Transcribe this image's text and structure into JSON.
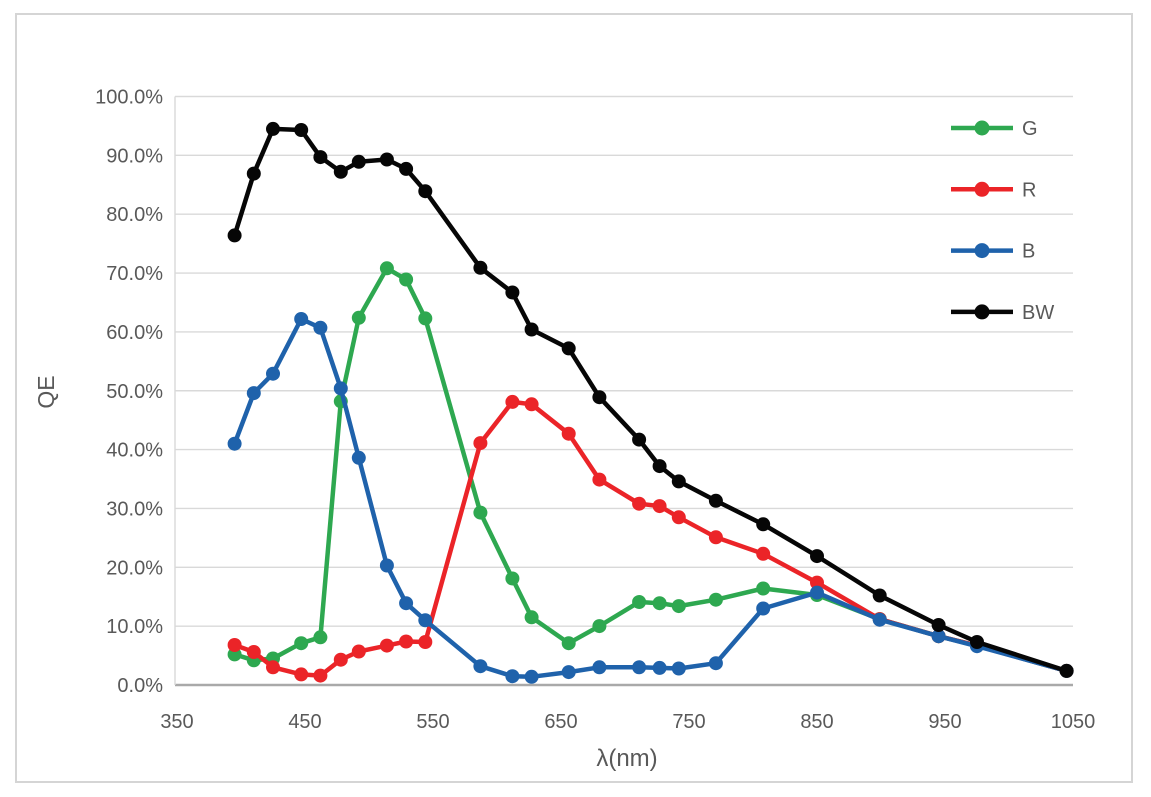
{
  "chart_data": {
    "type": "line",
    "title": "",
    "xlabel": "λ(nm)",
    "ylabel": "QE",
    "xlim": [
      350,
      1050
    ],
    "ylim_percent": [
      0,
      100
    ],
    "grid": "horizontal",
    "legend_position": "top-right-inside",
    "x_ticks": [
      {
        "v": 350,
        "label": "350"
      },
      {
        "v": 450,
        "label": "450"
      },
      {
        "v": 550,
        "label": "550"
      },
      {
        "v": 650,
        "label": "650"
      },
      {
        "v": 750,
        "label": "750"
      },
      {
        "v": 850,
        "label": "850"
      },
      {
        "v": 950,
        "label": "950"
      },
      {
        "v": 1050,
        "label": "1050"
      }
    ],
    "y_ticks": [
      {
        "v": 0,
        "label": "0.0%"
      },
      {
        "v": 10,
        "label": "10.0%"
      },
      {
        "v": 20,
        "label": "20.0%"
      },
      {
        "v": 30,
        "label": "30.0%"
      },
      {
        "v": 40,
        "label": "40.0%"
      },
      {
        "v": 50,
        "label": "50.0%"
      },
      {
        "v": 60,
        "label": "60.0%"
      },
      {
        "v": 70,
        "label": "70.0%"
      },
      {
        "v": 80,
        "label": "80.0%"
      },
      {
        "v": 90,
        "label": "90.0%"
      },
      {
        "v": 100,
        "label": "100.0%"
      }
    ],
    "x": [
      395,
      410,
      425,
      447,
      462,
      478,
      492,
      514,
      529,
      544,
      587,
      612,
      627,
      656,
      680,
      711,
      727,
      742,
      771,
      808,
      850,
      899,
      945,
      975,
      1045
    ],
    "series": [
      {
        "name": "G",
        "color": "#2ea850",
        "values": [
          5.2,
          4.2,
          4.5,
          7.1,
          8.1,
          48.2,
          62.4,
          70.8,
          68.9,
          62.3,
          29.3,
          18.1,
          11.5,
          7.1,
          10.0,
          14.1,
          13.9,
          13.4,
          14.5,
          16.4,
          15.3,
          11.2,
          8.3,
          6.7,
          2.4
        ]
      },
      {
        "name": "R",
        "color": "#eb2428",
        "values": [
          6.8,
          5.6,
          3.0,
          1.8,
          1.6,
          4.3,
          5.7,
          6.7,
          7.4,
          7.3,
          41.1,
          48.1,
          47.7,
          42.7,
          34.9,
          30.8,
          30.4,
          28.5,
          25.1,
          22.3,
          17.4,
          11.2,
          8.3,
          6.7,
          2.4
        ]
      },
      {
        "name": "B",
        "color": "#1f62ab",
        "values": [
          41.0,
          49.6,
          52.9,
          62.2,
          60.7,
          50.4,
          38.6,
          20.3,
          13.9,
          11.0,
          3.2,
          1.5,
          1.4,
          2.2,
          3.0,
          3.0,
          2.9,
          2.8,
          3.7,
          13.0,
          15.7,
          11.1,
          8.3,
          6.6,
          2.4
        ]
      },
      {
        "name": "BW",
        "color": "#060606",
        "values": [
          76.4,
          86.9,
          94.5,
          94.3,
          89.7,
          87.2,
          88.9,
          89.3,
          87.7,
          83.9,
          70.9,
          66.7,
          60.4,
          57.2,
          48.9,
          41.7,
          37.2,
          34.6,
          31.3,
          27.3,
          21.9,
          15.2,
          10.2,
          7.3,
          2.4
        ]
      }
    ],
    "style": {
      "grid_color": "#d9d9d9",
      "axis_line_color": "#a9a9a9",
      "tick_label_color": "#595959",
      "frame_border_color": "#d5d5d5",
      "plot_background": "#ffffff"
    }
  }
}
